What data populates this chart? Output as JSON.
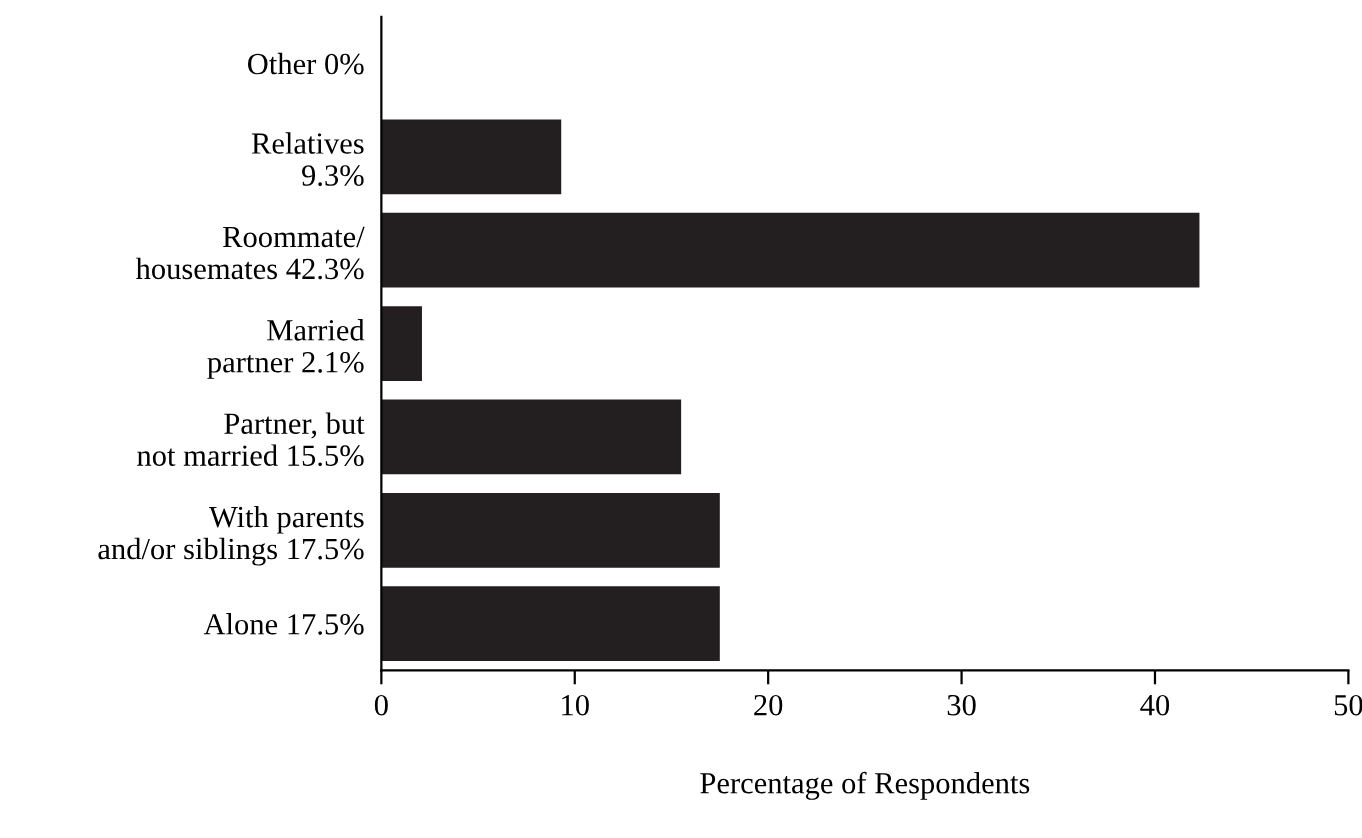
{
  "chart_data": {
    "type": "bar",
    "orientation": "horizontal",
    "categories": [
      "Other 0%",
      "Relatives\n9.3%",
      "Roommate/\nhousemates 42.3%",
      "Married\npartner 2.1%",
      "Partner, but\nnot married 15.5%",
      "With parents\nand/or siblings 17.5%",
      "Alone 17.5%"
    ],
    "values": [
      0,
      9.3,
      42.3,
      2.1,
      15.5,
      17.5,
      17.5
    ],
    "color": "#231f20",
    "xlabel": "Percentage of Respondents",
    "xlim": [
      0,
      50
    ],
    "xticks": [
      0,
      10,
      20,
      30,
      40,
      50
    ],
    "grid": false
  }
}
